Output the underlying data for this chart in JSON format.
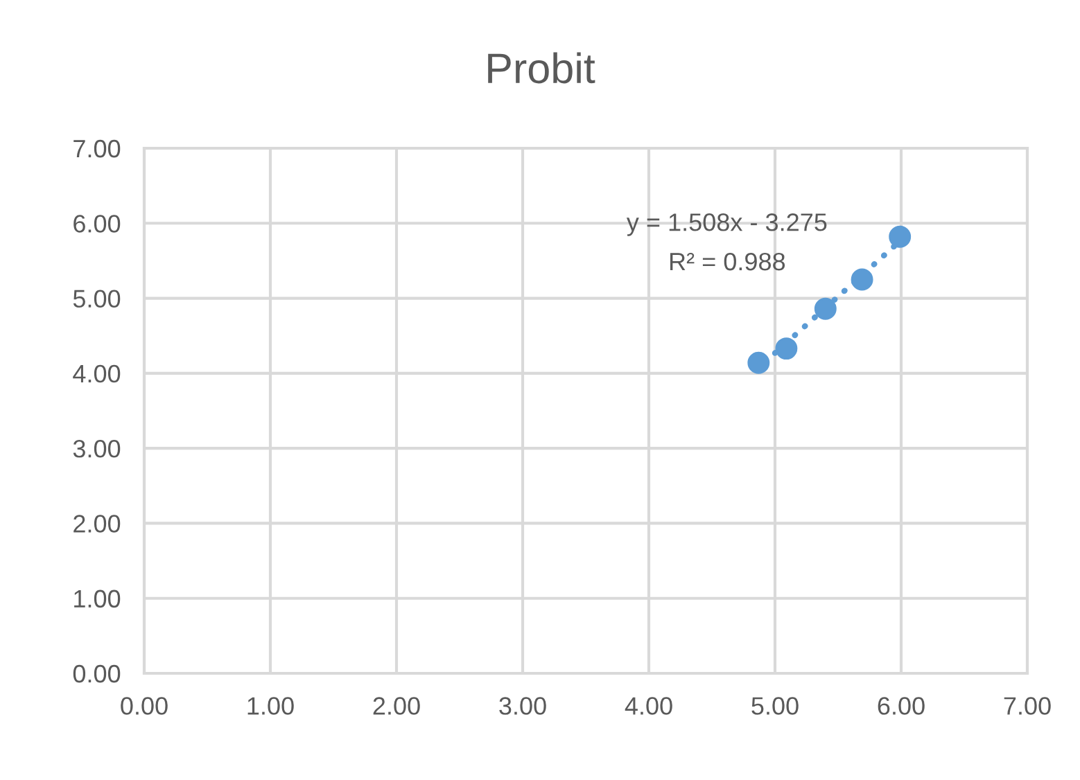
{
  "chart_data": {
    "type": "scatter",
    "title": "Probit",
    "series": [
      {
        "color": "#5b9bd5",
        "x": [
          4.87,
          5.09,
          5.4,
          5.69,
          5.99
        ],
        "values": [
          4.14,
          4.33,
          4.86,
          5.25,
          5.82
        ],
        "marker": "circle"
      },
      {
        "type": "line",
        "color": "#5b9bd5",
        "x": [
          5.0,
          5.95
        ],
        "values": [
          4.27,
          5.7
        ],
        "line_style": "dotted",
        "marker": "none"
      }
    ],
    "annotations": [
      "y = 1.508x - 3.275",
      "R² = 0.988"
    ],
    "xlim": [
      0,
      7
    ],
    "ylim": [
      0,
      7
    ],
    "xticks": [
      {
        "value": 0,
        "label": "0.00"
      },
      {
        "value": 1,
        "label": "1.00"
      },
      {
        "value": 2,
        "label": "2.00"
      },
      {
        "value": 3,
        "label": "3.00"
      },
      {
        "value": 4,
        "label": "4.00"
      },
      {
        "value": 5,
        "label": "5.00"
      },
      {
        "value": 6,
        "label": "6.00"
      },
      {
        "value": 7,
        "label": "7.00"
      }
    ],
    "yticks": [
      {
        "value": 0,
        "label": "0.00"
      },
      {
        "value": 1,
        "label": "1.00"
      },
      {
        "value": 2,
        "label": "2.00"
      },
      {
        "value": 3,
        "label": "3.00"
      },
      {
        "value": 4,
        "label": "4.00"
      },
      {
        "value": 5,
        "label": "5.00"
      },
      {
        "value": 6,
        "label": "6.00"
      },
      {
        "value": 7,
        "label": "7.00"
      }
    ],
    "grid": true,
    "legend": false
  }
}
